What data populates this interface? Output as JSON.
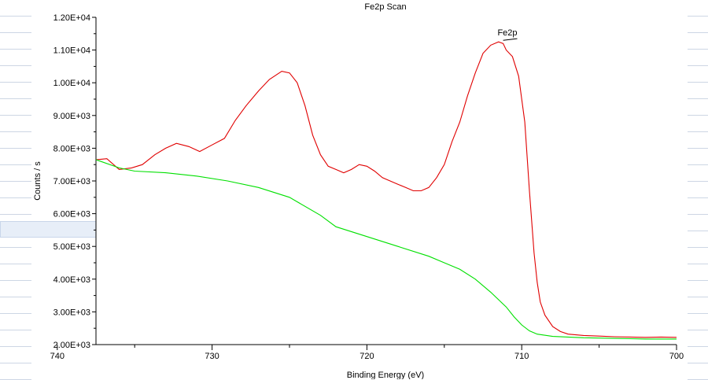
{
  "chart_data": {
    "type": "line",
    "title": "Fe2p Scan",
    "xlabel": "Binding Energy (eV)",
    "ylabel": "Counts / s",
    "xlim": [
      737.5,
      700
    ],
    "ylim": [
      2000,
      12000
    ],
    "x_reversed": true,
    "grid": false,
    "x_ticks": [
      740,
      730,
      720,
      710,
      700
    ],
    "x_tick_labels": [
      "740",
      "730",
      "720",
      "710",
      "700"
    ],
    "y_ticks": [
      2000,
      3000,
      4000,
      5000,
      6000,
      7000,
      8000,
      9000,
      10000,
      11000,
      12000
    ],
    "y_tick_labels": [
      "2.00E+03",
      "3.00E+03",
      "4.00E+03",
      "5.00E+03",
      "6.00E+03",
      "7.00E+03",
      "8.00E+03",
      "9.00E+03",
      "1.00E+04",
      "1.10E+04",
      "1.20E+04"
    ],
    "annotations": [
      {
        "text": "Fe2p",
        "x": 710.8,
        "y": 11300
      }
    ],
    "series": [
      {
        "color": "#e00000",
        "x": [
          737.5,
          736.8,
          736.0,
          735.2,
          734.5,
          733.7,
          733.0,
          732.3,
          731.5,
          730.8,
          730.0,
          729.2,
          728.5,
          727.8,
          727.0,
          726.3,
          725.5,
          725.0,
          724.5,
          724.0,
          723.5,
          723.0,
          722.5,
          722.0,
          721.5,
          721.0,
          720.5,
          720.0,
          719.5,
          719.0,
          718.5,
          718.0,
          717.5,
          717.0,
          716.5,
          716.0,
          715.5,
          715.0,
          714.5,
          714.0,
          713.5,
          713.0,
          712.5,
          712.0,
          711.5,
          711.2,
          711.0,
          710.6,
          710.2,
          709.8,
          709.5,
          709.2,
          709.0,
          708.8,
          708.5,
          708.0,
          707.5,
          707.0,
          706.0,
          705.0,
          704.0,
          703.0,
          702.0,
          701.0,
          700.0
        ],
        "values": [
          7650,
          7680,
          7350,
          7400,
          7500,
          7800,
          8000,
          8150,
          8050,
          7900,
          8100,
          8300,
          8850,
          9300,
          9750,
          10100,
          10350,
          10300,
          10000,
          9300,
          8400,
          7800,
          7450,
          7350,
          7250,
          7350,
          7500,
          7450,
          7300,
          7100,
          7000,
          6900,
          6800,
          6700,
          6700,
          6800,
          7100,
          7500,
          8200,
          8800,
          9600,
          10300,
          10900,
          11150,
          11250,
          11200,
          11000,
          10800,
          10200,
          8800,
          6700,
          4800,
          3900,
          3300,
          2900,
          2550,
          2400,
          2320,
          2280,
          2260,
          2240,
          2230,
          2220,
          2230,
          2220
        ]
      },
      {
        "color": "#00e000",
        "x": [
          737.5,
          736.0,
          735.0,
          733.0,
          731.0,
          729.0,
          727.0,
          725.0,
          723.0,
          722.0,
          720.0,
          718.0,
          716.0,
          715.0,
          714.0,
          713.0,
          712.0,
          711.0,
          710.5,
          710.0,
          709.5,
          709.0,
          708.0,
          707.0,
          706.0,
          705.0,
          704.0,
          703.0,
          702.0,
          701.0,
          700.0
        ],
        "values": [
          7650,
          7400,
          7300,
          7250,
          7150,
          7000,
          6800,
          6500,
          5950,
          5600,
          5300,
          5000,
          4700,
          4500,
          4300,
          4000,
          3600,
          3150,
          2850,
          2600,
          2420,
          2320,
          2250,
          2230,
          2210,
          2200,
          2190,
          2180,
          2170,
          2170,
          2170
        ]
      }
    ]
  }
}
